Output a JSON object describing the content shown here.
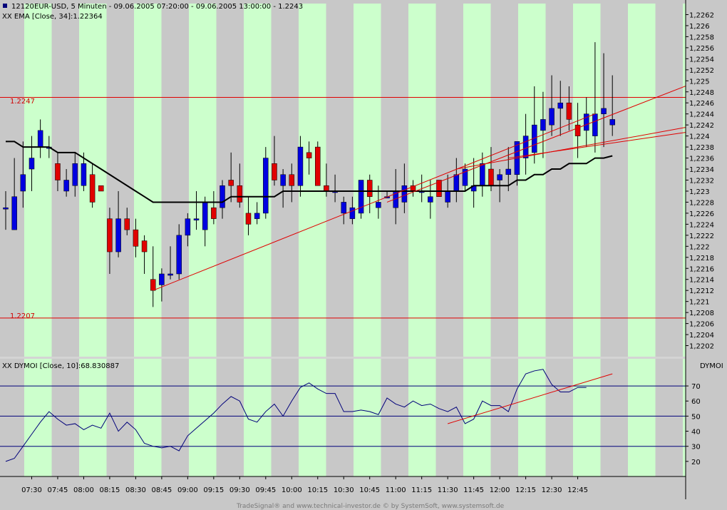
{
  "header": {
    "symbol_id": "12120",
    "title": "EUR-USD, 5 Minuten - 09.06.2005 07:20:00 - 09.06.2005 13:00:00 - 1.2243",
    "ema_label": "XX EMA [Close, 34]:1.22364",
    "dymoi_label": "XX DYMOI [Close, 10]:68.830887",
    "dymoi_axis_title": "DYMOI"
  },
  "footer": "TradeSignal® and www.technical-investor.de © by SystemSoft, www.systemsoft.de",
  "colors": {
    "background": "#c8c8c8",
    "session_band": "#ccffcc",
    "bull_candle": "#0000e0",
    "bear_candle": "#e00000",
    "ema": "#000000",
    "trendline": "#e00000",
    "indicator": "#00007a"
  },
  "chart_data": [
    {
      "type": "candlestick",
      "title": "EUR-USD, 5 Minuten",
      "ylim": [
        1.22,
        1.2264
      ],
      "y_ticks": [
        "1,2202",
        "1,2204",
        "1,2206",
        "1,2208",
        "1,221",
        "1,2212",
        "1,2214",
        "1,2216",
        "1,2218",
        "1,222",
        "1,2222",
        "1,2224",
        "1,2226",
        "1,2228",
        "1,223",
        "1,2232",
        "1,2234",
        "1,2236",
        "1,2238",
        "1,224",
        "1,2242",
        "1,2244",
        "1,2246",
        "1,2248",
        "1,225",
        "1,2252",
        "1,2254",
        "1,2256",
        "1,2258",
        "1,226",
        "1,2262"
      ],
      "x_ticks": [
        "07:30",
        "07:45",
        "08:00",
        "08:15",
        "08:30",
        "08:45",
        "09:00",
        "09:15",
        "09:30",
        "09:45",
        "10:00",
        "10:15",
        "10:30",
        "10:45",
        "11:00",
        "11:15",
        "11:30",
        "11:45",
        "12:00",
        "12:15",
        "12:30",
        "12:45"
      ],
      "horizontal_lines": [
        {
          "label": "1.2247",
          "value": 1.2247
        },
        {
          "label": "1.2207",
          "value": 1.2207
        }
      ],
      "candles": [
        {
          "o": 1.2227,
          "h": 1.223,
          "l": 1.2223,
          "c": 1.2227
        },
        {
          "o": 1.2223,
          "h": 1.2236,
          "l": 1.2223,
          "c": 1.2229
        },
        {
          "o": 1.223,
          "h": 1.2239,
          "l": 1.2227,
          "c": 1.2233
        },
        {
          "o": 1.2234,
          "h": 1.224,
          "l": 1.223,
          "c": 1.2236
        },
        {
          "o": 1.2238,
          "h": 1.2243,
          "l": 1.2236,
          "c": 1.2241
        },
        {
          "o": 1.2238,
          "h": 1.224,
          "l": 1.2236,
          "c": 1.2238
        },
        {
          "o": 1.2235,
          "h": 1.2237,
          "l": 1.223,
          "c": 1.2232
        },
        {
          "o": 1.223,
          "h": 1.2234,
          "l": 1.2229,
          "c": 1.2232
        },
        {
          "o": 1.2231,
          "h": 1.2237,
          "l": 1.2229,
          "c": 1.2235
        },
        {
          "o": 1.2231,
          "h": 1.2237,
          "l": 1.223,
          "c": 1.2235
        },
        {
          "o": 1.2233,
          "h": 1.2235,
          "l": 1.2227,
          "c": 1.2228
        },
        {
          "o": 1.2231,
          "h": 1.2231,
          "l": 1.223,
          "c": 1.223
        },
        {
          "o": 1.2225,
          "h": 1.2227,
          "l": 1.2215,
          "c": 1.2219
        },
        {
          "o": 1.2219,
          "h": 1.223,
          "l": 1.2218,
          "c": 1.2225
        },
        {
          "o": 1.2225,
          "h": 1.2227,
          "l": 1.2222,
          "c": 1.2223
        },
        {
          "o": 1.2223,
          "h": 1.2225,
          "l": 1.2218,
          "c": 1.222
        },
        {
          "o": 1.2221,
          "h": 1.2222,
          "l": 1.2215,
          "c": 1.2219
        },
        {
          "o": 1.2214,
          "h": 1.222,
          "l": 1.2209,
          "c": 1.2212
        },
        {
          "o": 1.2213,
          "h": 1.2216,
          "l": 1.221,
          "c": 1.2215
        },
        {
          "o": 1.2215,
          "h": 1.222,
          "l": 1.2214,
          "c": 1.2215
        },
        {
          "o": 1.2215,
          "h": 1.2224,
          "l": 1.2214,
          "c": 1.2222
        },
        {
          "o": 1.2222,
          "h": 1.2226,
          "l": 1.222,
          "c": 1.2225
        },
        {
          "o": 1.2225,
          "h": 1.223,
          "l": 1.2223,
          "c": 1.2225
        },
        {
          "o": 1.2223,
          "h": 1.2229,
          "l": 1.222,
          "c": 1.2228
        },
        {
          "o": 1.2227,
          "h": 1.223,
          "l": 1.2224,
          "c": 1.2225
        },
        {
          "o": 1.2227,
          "h": 1.2232,
          "l": 1.2225,
          "c": 1.2231
        },
        {
          "o": 1.2232,
          "h": 1.2237,
          "l": 1.2228,
          "c": 1.2231
        },
        {
          "o": 1.2231,
          "h": 1.2235,
          "l": 1.2227,
          "c": 1.2228
        },
        {
          "o": 1.2226,
          "h": 1.2229,
          "l": 1.2222,
          "c": 1.2224
        },
        {
          "o": 1.2225,
          "h": 1.2228,
          "l": 1.2224,
          "c": 1.2226
        },
        {
          "o": 1.2226,
          "h": 1.2238,
          "l": 1.2225,
          "c": 1.2236
        },
        {
          "o": 1.2235,
          "h": 1.224,
          "l": 1.2231,
          "c": 1.2232
        },
        {
          "o": 1.2231,
          "h": 1.2234,
          "l": 1.2227,
          "c": 1.2233
        },
        {
          "o": 1.2233,
          "h": 1.2235,
          "l": 1.2228,
          "c": 1.2231
        },
        {
          "o": 1.2231,
          "h": 1.224,
          "l": 1.2229,
          "c": 1.2238
        },
        {
          "o": 1.2237,
          "h": 1.2239,
          "l": 1.2233,
          "c": 1.2236
        },
        {
          "o": 1.2238,
          "h": 1.2239,
          "l": 1.2231,
          "c": 1.2231
        },
        {
          "o": 1.2231,
          "h": 1.2235,
          "l": 1.2229,
          "c": 1.223
        },
        {
          "o": 1.223,
          "h": 1.2233,
          "l": 1.2228,
          "c": 1.223
        },
        {
          "o": 1.2226,
          "h": 1.2229,
          "l": 1.2224,
          "c": 1.2228
        },
        {
          "o": 1.2225,
          "h": 1.2229,
          "l": 1.2224,
          "c": 1.2227
        },
        {
          "o": 1.2226,
          "h": 1.2232,
          "l": 1.2225,
          "c": 1.2232
        },
        {
          "o": 1.2232,
          "h": 1.2233,
          "l": 1.2226,
          "c": 1.2229
        },
        {
          "o": 1.2227,
          "h": 1.2231,
          "l": 1.2225,
          "c": 1.2228
        },
        {
          "o": 1.2229,
          "h": 1.223,
          "l": 1.2229,
          "c": 1.2229
        },
        {
          "o": 1.2227,
          "h": 1.2234,
          "l": 1.2224,
          "c": 1.223
        },
        {
          "o": 1.2228,
          "h": 1.2235,
          "l": 1.2226,
          "c": 1.2231
        },
        {
          "o": 1.2231,
          "h": 1.2232,
          "l": 1.2229,
          "c": 1.223
        },
        {
          "o": 1.223,
          "h": 1.2233,
          "l": 1.2228,
          "c": 1.223
        },
        {
          "o": 1.2228,
          "h": 1.2232,
          "l": 1.2225,
          "c": 1.2229
        },
        {
          "o": 1.2232,
          "h": 1.2232,
          "l": 1.2229,
          "c": 1.2229
        },
        {
          "o": 1.2228,
          "h": 1.2233,
          "l": 1.2227,
          "c": 1.223
        },
        {
          "o": 1.223,
          "h": 1.2236,
          "l": 1.2228,
          "c": 1.2233
        },
        {
          "o": 1.2231,
          "h": 1.2235,
          "l": 1.223,
          "c": 1.2234
        },
        {
          "o": 1.223,
          "h": 1.2236,
          "l": 1.2227,
          "c": 1.2231
        },
        {
          "o": 1.2231,
          "h": 1.2237,
          "l": 1.2229,
          "c": 1.2235
        },
        {
          "o": 1.2234,
          "h": 1.2238,
          "l": 1.223,
          "c": 1.2231
        },
        {
          "o": 1.2232,
          "h": 1.2234,
          "l": 1.2228,
          "c": 1.2233
        },
        {
          "o": 1.2233,
          "h": 1.2238,
          "l": 1.223,
          "c": 1.2234
        },
        {
          "o": 1.2233,
          "h": 1.2239,
          "l": 1.2231,
          "c": 1.2239
        },
        {
          "o": 1.2236,
          "h": 1.2244,
          "l": 1.2233,
          "c": 1.224
        },
        {
          "o": 1.2237,
          "h": 1.2249,
          "l": 1.2235,
          "c": 1.2242
        },
        {
          "o": 1.2241,
          "h": 1.2248,
          "l": 1.2236,
          "c": 1.2243
        },
        {
          "o": 1.2242,
          "h": 1.2251,
          "l": 1.224,
          "c": 1.2245
        },
        {
          "o": 1.2245,
          "h": 1.225,
          "l": 1.224,
          "c": 1.2246
        },
        {
          "o": 1.2246,
          "h": 1.2249,
          "l": 1.2241,
          "c": 1.2243
        },
        {
          "o": 1.2242,
          "h": 1.2246,
          "l": 1.2236,
          "c": 1.224
        },
        {
          "o": 1.2241,
          "h": 1.2247,
          "l": 1.2238,
          "c": 1.2244
        },
        {
          "o": 1.224,
          "h": 1.2257,
          "l": 1.2237,
          "c": 1.2244
        },
        {
          "o": 1.2244,
          "h": 1.2255,
          "l": 1.2238,
          "c": 1.2245
        },
        {
          "o": 1.2242,
          "h": 1.2251,
          "l": 1.224,
          "c": 1.2243
        }
      ],
      "ema": [
        1.2239,
        1.2239,
        1.2238,
        1.2238,
        1.2238,
        1.2238,
        1.2237,
        1.2237,
        1.2237,
        1.2236,
        1.2235,
        1.2234,
        1.2233,
        1.2232,
        1.2231,
        1.223,
        1.2229,
        1.2228,
        1.2228,
        1.2228,
        1.2228,
        1.2228,
        1.2228,
        1.2228,
        1.2228,
        1.2228,
        1.2229,
        1.2229,
        1.2229,
        1.2229,
        1.2229,
        1.2229,
        1.223,
        1.223,
        1.223,
        1.223,
        1.223,
        1.223,
        1.223,
        1.223,
        1.223,
        1.223,
        1.223,
        1.223,
        1.223,
        1.223,
        1.223,
        1.223,
        1.223,
        1.223,
        1.223,
        1.223,
        1.223,
        1.223,
        1.2231,
        1.2231,
        1.2231,
        1.2231,
        1.2231,
        1.2232,
        1.2232,
        1.2233,
        1.2233,
        1.2234,
        1.2234,
        1.2235,
        1.2235,
        1.2235,
        1.2236,
        1.2236,
        1.22364
      ],
      "trendlines": [
        {
          "x1": 17,
          "y1": 1.2212,
          "x2": 68,
          "y2": 1.2244
        },
        {
          "x1": 44,
          "y1": 1.2228,
          "x2": 80,
          "y2": 1.225
        },
        {
          "x1": 52,
          "y1": 1.2234,
          "x2": 80,
          "y2": 1.2242
        },
        {
          "x1": 58,
          "y1": 1.2236,
          "x2": 80,
          "y2": 1.2241
        }
      ]
    },
    {
      "type": "line",
      "title": "DYMOI",
      "ylim": [
        10,
        88
      ],
      "y_ticks": [
        "20",
        "30",
        "40",
        "50",
        "60",
        "70"
      ],
      "horizontal_lines": [
        30,
        50,
        70
      ],
      "series": [
        {
          "name": "DYMOI",
          "values": [
            20,
            22,
            30,
            38,
            46,
            53,
            48,
            44,
            45,
            41,
            44,
            42,
            52,
            40,
            46,
            41,
            32,
            30,
            29,
            30,
            27,
            37,
            42,
            47,
            52,
            58,
            63,
            60,
            48,
            46,
            53,
            58,
            50,
            60,
            69,
            72,
            68,
            65,
            65,
            53,
            53,
            54,
            53,
            51,
            62,
            58,
            56,
            60,
            57,
            58,
            55,
            53,
            56,
            45,
            48,
            60,
            57,
            57,
            53,
            68,
            78,
            80,
            81,
            71,
            66,
            66,
            69,
            69
          ]
        }
      ],
      "trendlines": [
        {
          "x1": 51,
          "y1": 45,
          "x2": 70,
          "y2": 78
        }
      ]
    }
  ]
}
